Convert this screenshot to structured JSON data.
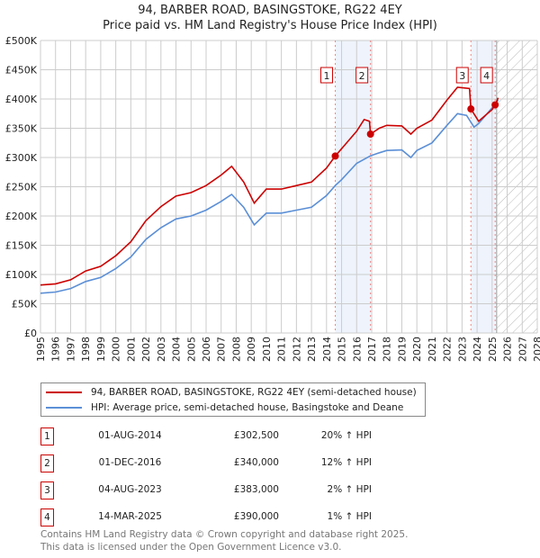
{
  "title": "94, BARBER ROAD, BASINGSTOKE, RG22 4EY",
  "subtitle": "Price paid vs. HM Land Registry's House Price Index (HPI)",
  "colors": {
    "property": "#cc0000",
    "hpi": "#5b8fd6",
    "band": "#eef3fc",
    "grid": "#cccccc"
  },
  "chart_data": {
    "type": "line",
    "title": "Price paid vs. HM Land Registry's House Price Index (HPI)",
    "xlim": [
      1995,
      2028
    ],
    "ylim": [
      0,
      500000
    ],
    "grid": true,
    "x_ticks": [
      "1995",
      "1996",
      "1997",
      "1998",
      "1999",
      "2000",
      "2001",
      "2002",
      "2003",
      "2004",
      "2005",
      "2006",
      "2007",
      "2008",
      "2009",
      "2010",
      "2011",
      "2012",
      "2013",
      "2014",
      "2015",
      "2016",
      "2017",
      "2018",
      "2019",
      "2020",
      "2021",
      "2022",
      "2023",
      "2024",
      "2025",
      "2026",
      "2027",
      "2028"
    ],
    "y_ticks": [
      {
        "v": 0,
        "label": "£0"
      },
      {
        "v": 50000,
        "label": "£50K"
      },
      {
        "v": 100000,
        "label": "£100K"
      },
      {
        "v": 150000,
        "label": "£150K"
      },
      {
        "v": 200000,
        "label": "£200K"
      },
      {
        "v": 250000,
        "label": "£250K"
      },
      {
        "v": 300000,
        "label": "£300K"
      },
      {
        "v": 350000,
        "label": "£350K"
      },
      {
        "v": 400000,
        "label": "£400K"
      },
      {
        "v": 450000,
        "label": "£450K"
      },
      {
        "v": 500000,
        "label": "£500K"
      }
    ],
    "series": [
      {
        "name": "94, BARBER ROAD, BASINGSTOKE, RG22 4EY (semi-detached house)",
        "color": "#cc0000",
        "x": [
          1995,
          1996,
          1997,
          1998,
          1999,
          2000,
          2001,
          2002,
          2003,
          2004,
          2005,
          2006,
          2007,
          2007.7,
          2008.5,
          2009.2,
          2010,
          2011,
          2012,
          2013,
          2014,
          2014.58,
          2015,
          2016,
          2016.5,
          2016.85,
          2016.92,
          2017.5,
          2018,
          2019,
          2019.6,
          2020,
          2021,
          2022,
          2022.7,
          2023.5,
          2023.59,
          2024.1,
          2025,
          2025.2,
          2025.4
        ],
        "y": [
          82000,
          84000,
          91000,
          106000,
          114000,
          132000,
          156000,
          192000,
          216000,
          234000,
          240000,
          252000,
          270000,
          285000,
          258000,
          222000,
          246000,
          246000,
          252000,
          258000,
          282000,
          302500,
          315000,
          345000,
          365000,
          362000,
          340000,
          350000,
          355000,
          354000,
          340000,
          350000,
          364000,
          398000,
          420000,
          418000,
          383000,
          362000,
          382000,
          390000,
          402000
        ]
      },
      {
        "name": "HPI: Average price, semi-detached house, Basingstoke and Deane",
        "color": "#5b8fd6",
        "x": [
          1995,
          1996,
          1997,
          1998,
          1999,
          2000,
          2001,
          2002,
          2003,
          2004,
          2005,
          2006,
          2007,
          2007.7,
          2008.5,
          2009.2,
          2010,
          2011,
          2012,
          2013,
          2014,
          2014.58,
          2015,
          2016,
          2016.92,
          2017.5,
          2018,
          2019,
          2019.6,
          2020,
          2021,
          2022,
          2022.7,
          2023.3,
          2023.8,
          2024.1,
          2025,
          2025.4
        ],
        "y": [
          68000,
          70000,
          76000,
          88000,
          95000,
          110000,
          130000,
          160000,
          180000,
          195000,
          200000,
          210000,
          225000,
          237000,
          215000,
          185000,
          205000,
          205000,
          210000,
          215000,
          235000,
          252000,
          262000,
          290000,
          303000,
          308000,
          312000,
          313000,
          300000,
          312000,
          325000,
          355000,
          375000,
          372000,
          352000,
          358000,
          385000,
          398000
        ]
      }
    ],
    "sales": [
      {
        "n": "1",
        "date": "01-AUG-2014",
        "price": "£302,500",
        "hpi": "20% ↑ HPI",
        "x": 2014.58,
        "y": 302500
      },
      {
        "n": "2",
        "date": "01-DEC-2016",
        "price": "£340,000",
        "hpi": "12% ↑ HPI",
        "x": 2016.92,
        "y": 340000
      },
      {
        "n": "3",
        "date": "04-AUG-2023",
        "price": "£383,000",
        "hpi": "2% ↑ HPI",
        "x": 2023.59,
        "y": 383000
      },
      {
        "n": "4",
        "date": "14-MAR-2025",
        "price": "£390,000",
        "hpi": "1% ↑ HPI",
        "x": 2025.2,
        "y": 390000
      }
    ],
    "forecast_from": 2025.3
  },
  "legend": {
    "property": "94, BARBER ROAD, BASINGSTOKE, RG22 4EY (semi-detached house)",
    "hpi": "HPI: Average price, semi-detached house, Basingstoke and Deane"
  },
  "footer": {
    "line1": "Contains HM Land Registry data © Crown copyright and database right 2025.",
    "line2": "This data is licensed under the Open Government Licence v3.0."
  }
}
